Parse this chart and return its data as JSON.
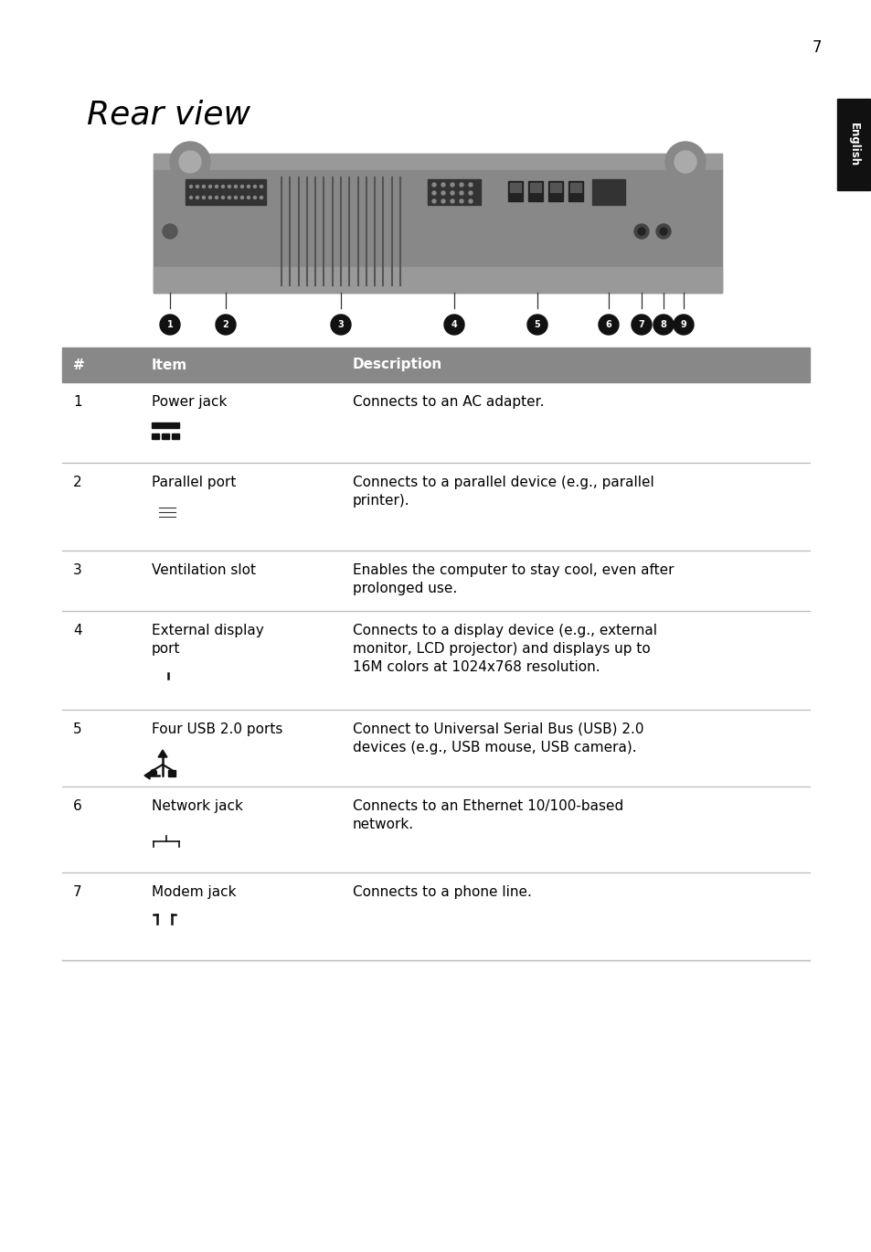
{
  "page_number": "7",
  "title": "Rear view",
  "bg_color": "#ffffff",
  "title_font_size": 26,
  "english_tab_color": "#111111",
  "english_tab_text": "English",
  "table_header_bg": "#888888",
  "table_header_color": "#ffffff",
  "table_header": [
    "#",
    "Item",
    "Description"
  ],
  "rows": [
    {
      "num": "1",
      "item": "Power jack",
      "desc": "Connects to an AC adapter.",
      "icon_type": "power_symbol"
    },
    {
      "num": "2",
      "item": "Parallel port",
      "desc": "Connects to a parallel device (e.g., parallel\nprinter).",
      "icon_type": "printer"
    },
    {
      "num": "3",
      "item": "Ventilation slot",
      "desc": "Enables the computer to stay cool, even after\nprolonged use.",
      "icon_type": ""
    },
    {
      "num": "4",
      "item": "External display\nport",
      "desc": "Connects to a display device (e.g., external\nmonitor, LCD projector) and displays up to\n16M colors at 1024x768 resolution.",
      "icon_type": "monitor"
    },
    {
      "num": "5",
      "item": "Four USB 2.0 ports",
      "desc": "Connect to Universal Serial Bus (USB) 2.0\ndevices (e.g., USB mouse, USB camera).",
      "icon_type": "usb"
    },
    {
      "num": "6",
      "item": "Network jack",
      "desc": "Connects to an Ethernet 10/100-based\nnetwork.",
      "icon_type": "network"
    },
    {
      "num": "7",
      "item": "Modem jack",
      "desc": "Connects to a phone line.",
      "icon_type": "modem"
    }
  ],
  "table_font_size": 11
}
